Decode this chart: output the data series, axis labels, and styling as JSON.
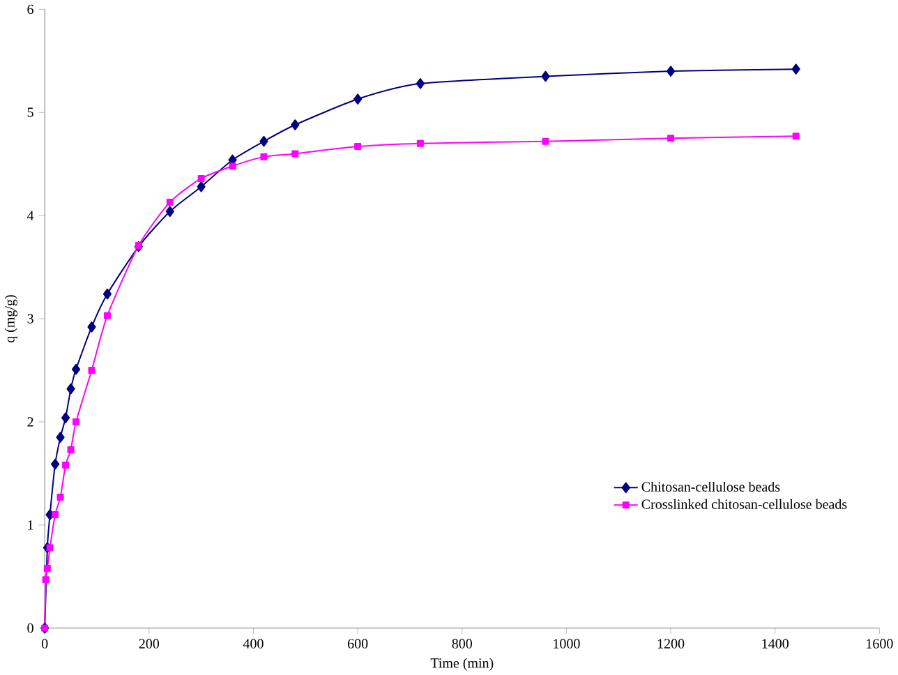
{
  "chart_data": {
    "type": "line",
    "xlabel": "Time (min)",
    "ylabel": "q (mg/g)",
    "xlim": [
      0,
      1600
    ],
    "xticks": [
      0,
      200,
      400,
      600,
      800,
      1000,
      1200,
      1400,
      1600
    ],
    "ylim": [
      0,
      6
    ],
    "yticks": [
      0,
      1,
      2,
      3,
      4,
      5,
      6
    ],
    "grid": false,
    "legend": "right",
    "series": [
      {
        "name": "Chitosan-cellulose beads",
        "color": "#000080",
        "marker": "diamond",
        "x": [
          0,
          5,
          10,
          20,
          30,
          40,
          50,
          60,
          90,
          120,
          180,
          240,
          300,
          360,
          420,
          480,
          600,
          720,
          960,
          1200,
          1440
        ],
        "values": [
          0,
          0.78,
          1.1,
          1.59,
          1.85,
          2.04,
          2.32,
          2.51,
          2.92,
          3.24,
          3.7,
          4.04,
          4.28,
          4.54,
          4.72,
          4.88,
          5.13,
          5.28,
          5.35,
          5.4,
          5.42
        ]
      },
      {
        "name": "Crosslinked chitosan-cellulose beads",
        "color": "#ff00ff",
        "marker": "square",
        "x": [
          0,
          2,
          5,
          10,
          20,
          30,
          40,
          50,
          60,
          90,
          120,
          180,
          240,
          300,
          360,
          420,
          480,
          600,
          720,
          960,
          1200,
          1440
        ],
        "values": [
          0,
          0.47,
          0.58,
          0.78,
          1.1,
          1.27,
          1.58,
          1.73,
          2.0,
          2.5,
          3.03,
          3.71,
          4.13,
          4.36,
          4.48,
          4.57,
          4.6,
          4.67,
          4.7,
          4.72,
          4.75,
          4.77
        ]
      }
    ]
  }
}
